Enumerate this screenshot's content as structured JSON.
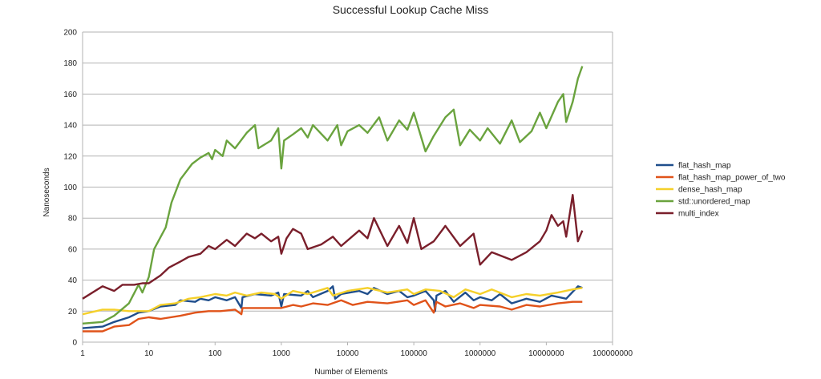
{
  "chart_data": {
    "type": "line",
    "title": "Successful Lookup Cache Miss",
    "xlabel": "Number of Elements",
    "ylabel": "Nanoseconds",
    "x_scale": "log",
    "xlim": [
      1,
      100000000
    ],
    "ylim": [
      0,
      200
    ],
    "x_ticks": [
      {
        "v": 1,
        "label": "1"
      },
      {
        "v": 10,
        "label": "10"
      },
      {
        "v": 100,
        "label": "100"
      },
      {
        "v": 1000,
        "label": "1000"
      },
      {
        "v": 10000,
        "label": "10000"
      },
      {
        "v": 100000,
        "label": "100000"
      },
      {
        "v": 1000000,
        "label": "1000000"
      },
      {
        "v": 10000000,
        "label": "10000000"
      },
      {
        "v": 100000000,
        "label": "100000000"
      }
    ],
    "y_ticks": [
      0,
      20,
      40,
      60,
      80,
      100,
      120,
      140,
      160,
      180,
      200
    ],
    "grid": "horizontal",
    "legend_position": "right",
    "series": [
      {
        "name": "flat_hash_map",
        "color": "#1f4e8c",
        "points": [
          [
            1,
            9
          ],
          [
            2,
            10
          ],
          [
            3,
            13
          ],
          [
            5,
            16
          ],
          [
            7,
            19
          ],
          [
            10,
            20
          ],
          [
            15,
            23
          ],
          [
            25,
            24
          ],
          [
            30,
            27
          ],
          [
            50,
            26
          ],
          [
            60,
            28
          ],
          [
            80,
            27
          ],
          [
            100,
            29
          ],
          [
            150,
            27
          ],
          [
            200,
            29
          ],
          [
            250,
            22
          ],
          [
            260,
            29
          ],
          [
            400,
            31
          ],
          [
            700,
            30
          ],
          [
            900,
            32
          ],
          [
            1000,
            23
          ],
          [
            1100,
            31
          ],
          [
            2000,
            30
          ],
          [
            2500,
            33
          ],
          [
            3000,
            29
          ],
          [
            5000,
            33
          ],
          [
            6000,
            36
          ],
          [
            6500,
            28
          ],
          [
            8000,
            31
          ],
          [
            15000,
            33
          ],
          [
            20000,
            31
          ],
          [
            25000,
            35
          ],
          [
            40000,
            31
          ],
          [
            60000,
            33
          ],
          [
            80000,
            29
          ],
          [
            100000,
            30
          ],
          [
            150000,
            33
          ],
          [
            200000,
            27
          ],
          [
            210000,
            20
          ],
          [
            220000,
            30
          ],
          [
            300000,
            33
          ],
          [
            400000,
            26
          ],
          [
            600000,
            32
          ],
          [
            800000,
            27
          ],
          [
            1000000,
            29
          ],
          [
            1500000,
            27
          ],
          [
            2000000,
            31
          ],
          [
            3000000,
            25
          ],
          [
            5000000,
            28
          ],
          [
            8000000,
            26
          ],
          [
            12000000,
            30
          ],
          [
            20000000,
            28
          ],
          [
            30000000,
            36
          ],
          [
            35000000,
            35
          ]
        ]
      },
      {
        "name": "flat_hash_map_power_of_two",
        "color": "#e0531a",
        "points": [
          [
            1,
            7
          ],
          [
            2,
            7
          ],
          [
            3,
            10
          ],
          [
            5,
            11
          ],
          [
            7,
            15
          ],
          [
            10,
            16
          ],
          [
            15,
            15
          ],
          [
            30,
            17
          ],
          [
            50,
            19
          ],
          [
            80,
            20
          ],
          [
            120,
            20
          ],
          [
            200,
            21
          ],
          [
            250,
            18
          ],
          [
            260,
            22
          ],
          [
            500,
            22
          ],
          [
            1000,
            22
          ],
          [
            1500,
            24
          ],
          [
            2000,
            23
          ],
          [
            3000,
            25
          ],
          [
            5000,
            24
          ],
          [
            8000,
            27
          ],
          [
            12000,
            24
          ],
          [
            20000,
            26
          ],
          [
            40000,
            25
          ],
          [
            80000,
            27
          ],
          [
            100000,
            24
          ],
          [
            150000,
            27
          ],
          [
            200000,
            19
          ],
          [
            220000,
            26
          ],
          [
            300000,
            23
          ],
          [
            500000,
            25
          ],
          [
            800000,
            22
          ],
          [
            1000000,
            24
          ],
          [
            2000000,
            23
          ],
          [
            3000000,
            21
          ],
          [
            5000000,
            24
          ],
          [
            8000000,
            23
          ],
          [
            15000000,
            25
          ],
          [
            25000000,
            26
          ],
          [
            35000000,
            26
          ]
        ]
      },
      {
        "name": "dense_hash_map",
        "color": "#f5d02a",
        "points": [
          [
            1,
            18
          ],
          [
            2,
            21
          ],
          [
            3,
            21
          ],
          [
            5,
            20
          ],
          [
            7,
            20
          ],
          [
            10,
            20
          ],
          [
            15,
            24
          ],
          [
            25,
            25
          ],
          [
            40,
            28
          ],
          [
            60,
            29
          ],
          [
            100,
            31
          ],
          [
            150,
            30
          ],
          [
            200,
            32
          ],
          [
            300,
            30
          ],
          [
            500,
            32
          ],
          [
            800,
            31
          ],
          [
            1000,
            28
          ],
          [
            1500,
            33
          ],
          [
            2500,
            31
          ],
          [
            5000,
            35
          ],
          [
            6000,
            30
          ],
          [
            10000,
            33
          ],
          [
            20000,
            35
          ],
          [
            40000,
            32
          ],
          [
            80000,
            34
          ],
          [
            100000,
            31
          ],
          [
            150000,
            34
          ],
          [
            250000,
            33
          ],
          [
            400000,
            29
          ],
          [
            600000,
            34
          ],
          [
            1000000,
            31
          ],
          [
            1500000,
            34
          ],
          [
            3000000,
            29
          ],
          [
            5000000,
            31
          ],
          [
            8000000,
            30
          ],
          [
            15000000,
            32
          ],
          [
            25000000,
            34
          ],
          [
            35000000,
            35
          ]
        ]
      },
      {
        "name": "std::unordered_map",
        "color": "#6aa33e",
        "points": [
          [
            1,
            12
          ],
          [
            2,
            13
          ],
          [
            3,
            17
          ],
          [
            5,
            25
          ],
          [
            7,
            37
          ],
          [
            8,
            32
          ],
          [
            10,
            42
          ],
          [
            12,
            60
          ],
          [
            18,
            74
          ],
          [
            22,
            90
          ],
          [
            30,
            105
          ],
          [
            45,
            115
          ],
          [
            60,
            119
          ],
          [
            80,
            122
          ],
          [
            90,
            118
          ],
          [
            100,
            124
          ],
          [
            130,
            120
          ],
          [
            150,
            130
          ],
          [
            200,
            125
          ],
          [
            300,
            135
          ],
          [
            400,
            140
          ],
          [
            450,
            125
          ],
          [
            700,
            130
          ],
          [
            900,
            138
          ],
          [
            1000,
            112
          ],
          [
            1100,
            130
          ],
          [
            1500,
            134
          ],
          [
            2000,
            138
          ],
          [
            2500,
            132
          ],
          [
            3000,
            140
          ],
          [
            5000,
            130
          ],
          [
            7000,
            140
          ],
          [
            8000,
            127
          ],
          [
            10000,
            136
          ],
          [
            15000,
            140
          ],
          [
            20000,
            135
          ],
          [
            30000,
            145
          ],
          [
            40000,
            130
          ],
          [
            60000,
            143
          ],
          [
            80000,
            137
          ],
          [
            100000,
            148
          ],
          [
            150000,
            123
          ],
          [
            200000,
            133
          ],
          [
            300000,
            145
          ],
          [
            400000,
            150
          ],
          [
            500000,
            127
          ],
          [
            700000,
            137
          ],
          [
            1000000,
            130
          ],
          [
            1300000,
            138
          ],
          [
            2000000,
            128
          ],
          [
            3000000,
            143
          ],
          [
            4000000,
            129
          ],
          [
            6000000,
            136
          ],
          [
            8000000,
            148
          ],
          [
            10000000,
            138
          ],
          [
            15000000,
            155
          ],
          [
            18000000,
            160
          ],
          [
            20000000,
            142
          ],
          [
            25000000,
            155
          ],
          [
            30000000,
            170
          ],
          [
            35000000,
            178
          ]
        ]
      },
      {
        "name": "multi_index",
        "color": "#7a1f2b",
        "points": [
          [
            1,
            28
          ],
          [
            2,
            36
          ],
          [
            3,
            33
          ],
          [
            4,
            37
          ],
          [
            6,
            37
          ],
          [
            8,
            38
          ],
          [
            10,
            38
          ],
          [
            15,
            43
          ],
          [
            20,
            48
          ],
          [
            30,
            52
          ],
          [
            40,
            55
          ],
          [
            60,
            57
          ],
          [
            80,
            62
          ],
          [
            100,
            60
          ],
          [
            150,
            66
          ],
          [
            200,
            62
          ],
          [
            300,
            70
          ],
          [
            400,
            67
          ],
          [
            500,
            70
          ],
          [
            700,
            65
          ],
          [
            900,
            68
          ],
          [
            1000,
            57
          ],
          [
            1200,
            67
          ],
          [
            1500,
            73
          ],
          [
            2000,
            70
          ],
          [
            2500,
            60
          ],
          [
            4000,
            63
          ],
          [
            6000,
            68
          ],
          [
            8000,
            62
          ],
          [
            15000,
            72
          ],
          [
            20000,
            67
          ],
          [
            25000,
            80
          ],
          [
            40000,
            62
          ],
          [
            60000,
            75
          ],
          [
            80000,
            64
          ],
          [
            100000,
            80
          ],
          [
            130000,
            60
          ],
          [
            200000,
            65
          ],
          [
            300000,
            75
          ],
          [
            500000,
            62
          ],
          [
            800000,
            70
          ],
          [
            1000000,
            50
          ],
          [
            1500000,
            58
          ],
          [
            3000000,
            53
          ],
          [
            5000000,
            58
          ],
          [
            8000000,
            65
          ],
          [
            10000000,
            72
          ],
          [
            12000000,
            82
          ],
          [
            15000000,
            75
          ],
          [
            18000000,
            78
          ],
          [
            20000000,
            68
          ],
          [
            25000000,
            95
          ],
          [
            30000000,
            65
          ],
          [
            35000000,
            72
          ]
        ]
      }
    ]
  }
}
